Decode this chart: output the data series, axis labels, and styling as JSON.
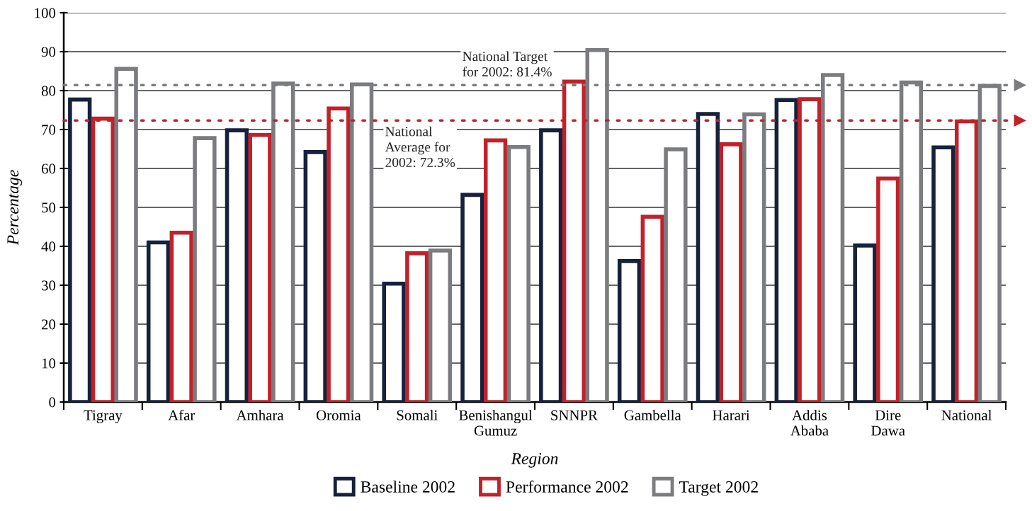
{
  "chart_data": {
    "type": "bar",
    "xlabel": "Region",
    "ylabel": "Percentage",
    "categories": [
      "Tigray",
      "Afar",
      "Amhara",
      "Oromia",
      "Somali",
      "Benishangul\nGumuz",
      "SNNPR",
      "Gambella",
      "Harari",
      "Addis\nAbaba",
      "Dire\nDawa",
      "National"
    ],
    "series": [
      {
        "name": "Baseline 2002",
        "color": "#16213d",
        "values": [
          77.7,
          41,
          69.8,
          64.2,
          30.4,
          53.2,
          69.8,
          36.2,
          74.0,
          77.6,
          40.2,
          65.4
        ]
      },
      {
        "name": "Performance 2002",
        "color": "#c1222a",
        "values": [
          72.8,
          43.5,
          68.6,
          75.4,
          38.2,
          67.2,
          82.3,
          47.6,
          66.2,
          77.8,
          57.4,
          72.1
        ]
      },
      {
        "name": "Target 2002",
        "color": "#7b7c80",
        "values": [
          85.6,
          67.8,
          81.8,
          81.6,
          38.9,
          65.5,
          90.4,
          64.9,
          73.9,
          84.0,
          82.1,
          81.2
        ]
      }
    ],
    "ylim": [
      0,
      100
    ],
    "yticks": [
      0,
      10,
      20,
      30,
      40,
      50,
      60,
      70,
      80,
      90,
      100
    ],
    "ref_lines": [
      {
        "axis": "y",
        "value": 81.4,
        "label": "National Target\nfor 2002: 81.4%",
        "color": "#7b7c80",
        "line_style": "dotted"
      },
      {
        "axis": "y",
        "value": 72.3,
        "label": "National\nAverage for\n2002: 72.3%",
        "color": "#c1222a",
        "line_style": "dotted"
      }
    ],
    "grid": "y",
    "legend": "bottom"
  }
}
